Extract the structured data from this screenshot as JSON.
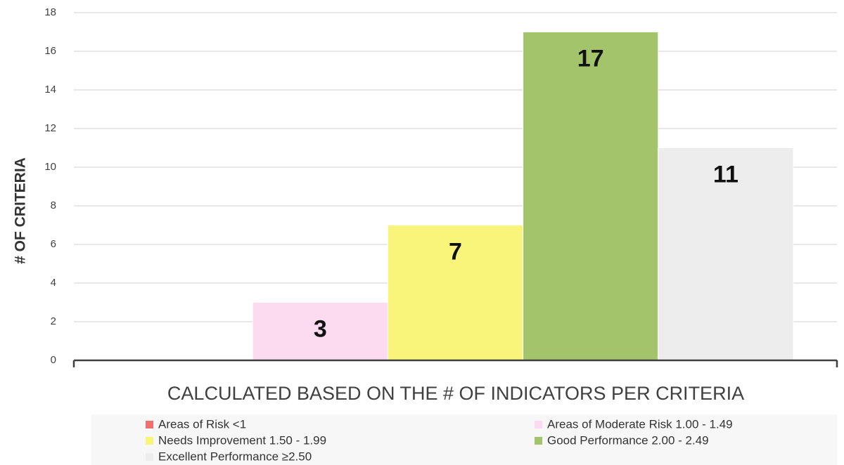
{
  "chart_data": {
    "type": "bar",
    "y_label": "# OF CRITERIA",
    "x_label": "CALCULATED BASED ON THE # OF INDICATORS PER CRITERIA",
    "series": [
      {
        "name": "Areas of Risk <1",
        "color": "#f07070",
        "values": [
          0
        ]
      },
      {
        "name": "Areas of Moderate Risk 1.00 - 1.49",
        "color": "#fcdaf0",
        "values": [
          3
        ]
      },
      {
        "name": "Needs Improvement 1.50 - 1.99",
        "color": "#f9f57a",
        "values": [
          7
        ]
      },
      {
        "name": "Good Performance 2.00 - 2.49",
        "color": "#a3c46b",
        "values": [
          17
        ]
      },
      {
        "name": "Excellent Performance ≥2.50",
        "color": "#ededed",
        "values": [
          11
        ]
      }
    ],
    "ylim": [
      0,
      18
    ],
    "yticks": [
      0,
      2,
      4,
      6,
      8,
      10,
      12,
      14,
      16,
      18
    ],
    "grid": true
  }
}
